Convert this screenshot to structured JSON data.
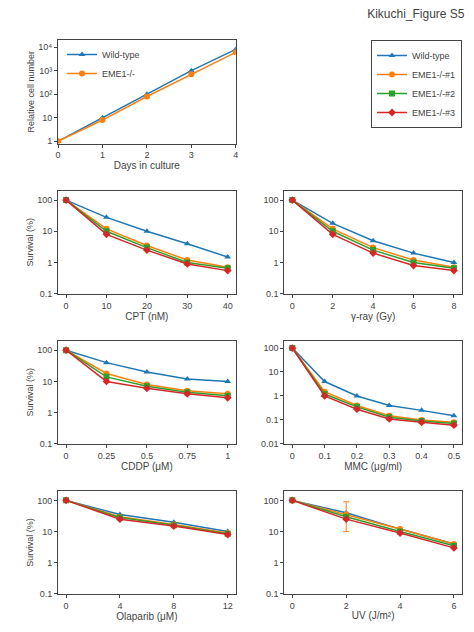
{
  "title": "Kikuchi_Figure S5",
  "chart_data": [
    {
      "type": "line",
      "log": "y",
      "grid": false,
      "legend": "upper left",
      "xlabel": "Days in culture",
      "ylabel": "Relative cell number",
      "x": [
        0,
        1,
        2,
        3,
        4
      ],
      "xlim": [
        0,
        4
      ],
      "xticks": [
        0,
        1,
        2,
        3,
        4
      ],
      "ylim": [
        0.8,
        20000
      ],
      "yticks": [
        1,
        10,
        {
          "value": 100,
          "label": "10²"
        },
        {
          "value": 1000,
          "label": "10³"
        },
        {
          "value": 10000,
          "label": "10⁴"
        }
      ],
      "series": [
        {
          "name": "Wild-type",
          "color": "#1f77b4",
          "marker": "triangle-up",
          "line_style": "solid",
          "values": [
            1,
            10,
            100,
            1000,
            8000
          ]
        },
        {
          "name": "EME1-/-",
          "color": "#ff7f0e",
          "marker": "circle",
          "line_style": "solid",
          "values": [
            1,
            8,
            80,
            700,
            6000
          ]
        }
      ]
    },
    {
      "type": "line",
      "log": "y",
      "grid": false,
      "legend": "upper right",
      "xlabel": "CPT (nM)",
      "ylabel": "Survival (%)",
      "x": [
        0,
        10,
        20,
        30,
        40
      ],
      "xlim": [
        -2,
        42
      ],
      "xticks": [
        0,
        10,
        20,
        30,
        40
      ],
      "ylim": [
        0.1,
        200
      ],
      "yticks": [
        0.1,
        1,
        10,
        100
      ],
      "series": [
        {
          "name": "Wild-type",
          "color": "#1f77b4",
          "marker": "triangle-up",
          "line_style": "solid",
          "values": [
            100,
            28,
            10,
            4,
            1.5
          ]
        },
        {
          "name": "EME1-/-#1",
          "color": "#ff7f0e",
          "marker": "circle",
          "line_style": "solid",
          "values": [
            100,
            12,
            3.5,
            1.2,
            0.7
          ]
        },
        {
          "name": "EME1-/-#2",
          "color": "#2ca02c",
          "marker": "square",
          "line_style": "solid",
          "values": [
            100,
            10,
            3.0,
            1.0,
            0.65
          ]
        },
        {
          "name": "EME1-/-#3",
          "color": "#d62728",
          "marker": "diamond",
          "line_style": "solid",
          "values": [
            100,
            8,
            2.5,
            0.9,
            0.55
          ]
        }
      ]
    },
    {
      "type": "line",
      "log": "y",
      "grid": false,
      "xlabel": "γ-ray (Gy)",
      "x": [
        0,
        2,
        4,
        6,
        8
      ],
      "xlim": [
        -0.4,
        8.4
      ],
      "xticks": [
        0,
        2,
        4,
        6,
        8
      ],
      "ylim": [
        0.1,
        200
      ],
      "yticks": [
        0.1,
        1,
        10,
        100
      ],
      "series": [
        {
          "name": "Wild-type",
          "color": "#1f77b4",
          "marker": "triangle-up",
          "line_style": "solid",
          "values": [
            100,
            18,
            5,
            2,
            1
          ]
        },
        {
          "name": "EME1-/-#1",
          "color": "#ff7f0e",
          "marker": "circle",
          "line_style": "solid",
          "values": [
            100,
            12,
            3,
            1.2,
            0.7
          ]
        },
        {
          "name": "EME1-/-#2",
          "color": "#2ca02c",
          "marker": "square",
          "line_style": "solid",
          "values": [
            100,
            10,
            2.5,
            1.0,
            0.65
          ]
        },
        {
          "name": "EME1-/-#3",
          "color": "#d62728",
          "marker": "diamond",
          "line_style": "solid",
          "values": [
            100,
            8,
            2.0,
            0.8,
            0.55
          ]
        }
      ]
    },
    {
      "type": "line",
      "log": "y",
      "grid": false,
      "xlabel": "CDDP (μM)",
      "ylabel": "Survival (%)",
      "x": [
        0,
        0.25,
        0.5,
        0.75,
        1.0
      ],
      "xlim": [
        -0.05,
        1.05
      ],
      "xticks": [
        0,
        0.25,
        0.5,
        0.75,
        1
      ],
      "ylim": [
        0.1,
        200
      ],
      "yticks": [
        0.1,
        1,
        10,
        100
      ],
      "series": [
        {
          "name": "Wild-type",
          "color": "#1f77b4",
          "marker": "triangle-up",
          "line_style": "solid",
          "values": [
            100,
            40,
            20,
            12,
            10
          ]
        },
        {
          "name": "EME1-/-#1",
          "color": "#ff7f0e",
          "marker": "circle",
          "line_style": "solid",
          "values": [
            100,
            18,
            8,
            5,
            4
          ]
        },
        {
          "name": "EME1-/-#2",
          "color": "#2ca02c",
          "marker": "square",
          "line_style": "solid",
          "values": [
            100,
            14,
            7,
            4.5,
            3.5
          ]
        },
        {
          "name": "EME1-/-#3",
          "color": "#d62728",
          "marker": "diamond",
          "line_style": "solid",
          "values": [
            100,
            10,
            6,
            4,
            3
          ]
        }
      ]
    },
    {
      "type": "line",
      "log": "y",
      "grid": false,
      "xlabel": "MMC (μg/ml)",
      "x": [
        0,
        0.1,
        0.2,
        0.3,
        0.4,
        0.5
      ],
      "xlim": [
        -0.025,
        0.525
      ],
      "xticks": [
        0,
        0.1,
        0.2,
        0.3,
        0.4,
        0.5
      ],
      "ylim": [
        0.01,
        200
      ],
      "yticks": [
        0.01,
        0.1,
        1,
        10,
        100
      ],
      "series": [
        {
          "name": "Wild-type",
          "color": "#1f77b4",
          "marker": "triangle-up",
          "line_style": "solid",
          "values": [
            100,
            4,
            1,
            0.4,
            0.25,
            0.15
          ]
        },
        {
          "name": "EME1-/-#1",
          "color": "#ff7f0e",
          "marker": "circle",
          "line_style": "solid",
          "values": [
            100,
            1.5,
            0.4,
            0.15,
            0.1,
            0.08
          ]
        },
        {
          "name": "EME1-/-#2",
          "color": "#2ca02c",
          "marker": "square",
          "line_style": "solid",
          "values": [
            100,
            1.2,
            0.35,
            0.13,
            0.09,
            0.07
          ]
        },
        {
          "name": "EME1-/-#3",
          "color": "#d62728",
          "marker": "diamond",
          "line_style": "solid",
          "values": [
            100,
            1.0,
            0.28,
            0.11,
            0.08,
            0.06
          ]
        }
      ]
    },
    {
      "type": "line",
      "log": "y",
      "grid": false,
      "xlabel": "Olaparib (μM)",
      "ylabel": "Survival (%)",
      "x": [
        0,
        4,
        8,
        12
      ],
      "xlim": [
        -0.6,
        12.6
      ],
      "xticks": [
        0,
        4,
        8,
        12
      ],
      "ylim": [
        0.1,
        200
      ],
      "yticks": [
        0.1,
        1,
        10,
        100
      ],
      "series": [
        {
          "name": "Wild-type",
          "color": "#1f77b4",
          "marker": "triangle-up",
          "line_style": "solid",
          "values": [
            100,
            35,
            20,
            10
          ]
        },
        {
          "name": "EME1-/-#1",
          "color": "#ff7f0e",
          "marker": "circle",
          "line_style": "solid",
          "values": [
            100,
            30,
            17,
            9
          ]
        },
        {
          "name": "EME1-/-#2",
          "color": "#2ca02c",
          "marker": "square",
          "line_style": "solid",
          "values": [
            100,
            28,
            16,
            8.5
          ]
        },
        {
          "name": "EME1-/-#3",
          "color": "#d62728",
          "marker": "diamond",
          "line_style": "solid",
          "values": [
            100,
            25,
            15,
            8
          ]
        }
      ]
    },
    {
      "type": "line",
      "log": "y",
      "grid": false,
      "xlabel": "UV (J/m²)",
      "x": [
        0,
        2,
        4,
        6
      ],
      "xlim": [
        -0.3,
        6.3
      ],
      "xticks": [
        0,
        2,
        4,
        6
      ],
      "ylim": [
        0.1,
        200
      ],
      "yticks": [
        0.1,
        1,
        10,
        100
      ],
      "series": [
        {
          "name": "Wild-type",
          "color": "#1f77b4",
          "marker": "triangle-up",
          "line_style": "solid",
          "values": [
            100,
            40,
            12,
            4
          ]
        },
        {
          "name": "EME1-/-#1",
          "color": "#ff7f0e",
          "marker": "circle",
          "line_style": "solid",
          "values": [
            100,
            35,
            12,
            4
          ],
          "error_minus": [
            null,
            25,
            null,
            null
          ],
          "error_plus": [
            null,
            55,
            null,
            null
          ]
        },
        {
          "name": "EME1-/-#2",
          "color": "#2ca02c",
          "marker": "square",
          "line_style": "solid",
          "values": [
            100,
            30,
            10,
            3.5
          ]
        },
        {
          "name": "EME1-/-#3",
          "color": "#d62728",
          "marker": "diamond",
          "line_style": "solid",
          "values": [
            100,
            25,
            9,
            3
          ]
        }
      ]
    }
  ]
}
